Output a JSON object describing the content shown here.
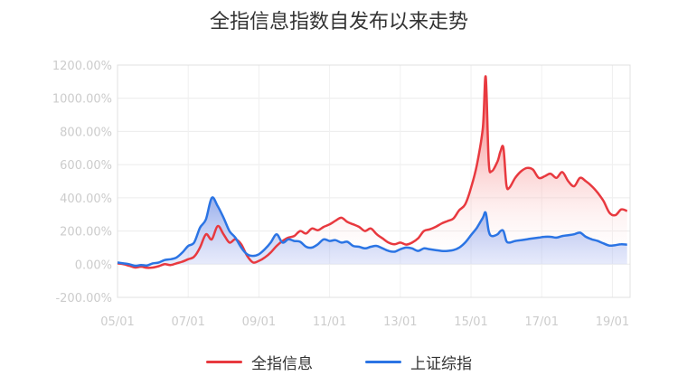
{
  "title": "全指信息指数自发布以来走势",
  "colors": {
    "series1": "#e8393f",
    "series2": "#2b74e4",
    "grid": "#e6e6e6",
    "axis": "#cccccc"
  },
  "chart_data": {
    "type": "area",
    "title": "全指信息指数自发布以来走势",
    "x_ticks": [
      "05/01",
      "07/01",
      "09/01",
      "11/01",
      "13/01",
      "15/01",
      "17/01",
      "19/01"
    ],
    "y_ticks": [
      "1200.00%",
      "1000.00%",
      "800.00%",
      "600.00%",
      "400.00%",
      "200.00%",
      "0.00%",
      "-200.00%"
    ],
    "ylim": [
      -200,
      1200
    ],
    "xlim": [
      "2005-01",
      "2019-06"
    ],
    "grid": {
      "horizontal": true,
      "vertical": true
    },
    "legend_position": "bottom-center",
    "series": [
      {
        "name": "全指信息",
        "points": [
          [
            "2005-01",
            5
          ],
          [
            "2005-03",
            0
          ],
          [
            "2005-05",
            -10
          ],
          [
            "2005-07",
            -20
          ],
          [
            "2005-09",
            -15
          ],
          [
            "2005-11",
            -22
          ],
          [
            "2006-01",
            -20
          ],
          [
            "2006-03",
            -12
          ],
          [
            "2006-05",
            0
          ],
          [
            "2006-07",
            -5
          ],
          [
            "2006-09",
            5
          ],
          [
            "2006-11",
            15
          ],
          [
            "2007-01",
            30
          ],
          [
            "2007-03",
            45
          ],
          [
            "2007-05",
            100
          ],
          [
            "2007-07",
            180
          ],
          [
            "2007-09",
            150
          ],
          [
            "2007-11",
            230
          ],
          [
            "2008-01",
            180
          ],
          [
            "2008-03",
            130
          ],
          [
            "2008-05",
            150
          ],
          [
            "2008-07",
            120
          ],
          [
            "2008-09",
            50
          ],
          [
            "2008-11",
            10
          ],
          [
            "2009-01",
            20
          ],
          [
            "2009-03",
            40
          ],
          [
            "2009-05",
            70
          ],
          [
            "2009-07",
            110
          ],
          [
            "2009-09",
            140
          ],
          [
            "2009-11",
            160
          ],
          [
            "2010-01",
            170
          ],
          [
            "2010-03",
            200
          ],
          [
            "2010-05",
            185
          ],
          [
            "2010-07",
            215
          ],
          [
            "2010-09",
            205
          ],
          [
            "2010-11",
            225
          ],
          [
            "2011-01",
            240
          ],
          [
            "2011-03",
            262
          ],
          [
            "2011-05",
            280
          ],
          [
            "2011-07",
            255
          ],
          [
            "2011-09",
            240
          ],
          [
            "2011-11",
            225
          ],
          [
            "2012-01",
            200
          ],
          [
            "2012-03",
            215
          ],
          [
            "2012-05",
            180
          ],
          [
            "2012-07",
            155
          ],
          [
            "2012-09",
            130
          ],
          [
            "2012-11",
            120
          ],
          [
            "2013-01",
            130
          ],
          [
            "2013-03",
            118
          ],
          [
            "2013-05",
            130
          ],
          [
            "2013-07",
            155
          ],
          [
            "2013-09",
            200
          ],
          [
            "2013-11",
            210
          ],
          [
            "2014-01",
            225
          ],
          [
            "2014-03",
            245
          ],
          [
            "2014-05",
            260
          ],
          [
            "2014-07",
            275
          ],
          [
            "2014-09",
            325
          ],
          [
            "2014-11",
            360
          ],
          [
            "2015-01",
            460
          ],
          [
            "2015-03",
            600
          ],
          [
            "2015-05",
            820
          ],
          [
            "2015-06",
            1130
          ],
          [
            "2015-07",
            620
          ],
          [
            "2015-08",
            560
          ],
          [
            "2015-10",
            620
          ],
          [
            "2015-11",
            680
          ],
          [
            "2015-12",
            700
          ],
          [
            "2016-01",
            480
          ],
          [
            "2016-02",
            460
          ],
          [
            "2016-04",
            520
          ],
          [
            "2016-06",
            560
          ],
          [
            "2016-08",
            580
          ],
          [
            "2016-10",
            570
          ],
          [
            "2016-12",
            520
          ],
          [
            "2017-02",
            530
          ],
          [
            "2017-04",
            545
          ],
          [
            "2017-06",
            520
          ],
          [
            "2017-08",
            555
          ],
          [
            "2017-10",
            500
          ],
          [
            "2017-12",
            470
          ],
          [
            "2018-02",
            520
          ],
          [
            "2018-04",
            500
          ],
          [
            "2018-06",
            470
          ],
          [
            "2018-08",
            430
          ],
          [
            "2018-10",
            380
          ],
          [
            "2018-12",
            310
          ],
          [
            "2019-02",
            295
          ],
          [
            "2019-04",
            330
          ],
          [
            "2019-06",
            320
          ]
        ]
      },
      {
        "name": "上证综指",
        "points": [
          [
            "2005-01",
            10
          ],
          [
            "2005-03",
            5
          ],
          [
            "2005-05",
            0
          ],
          [
            "2005-07",
            -10
          ],
          [
            "2005-09",
            -5
          ],
          [
            "2005-11",
            -8
          ],
          [
            "2006-01",
            5
          ],
          [
            "2006-03",
            10
          ],
          [
            "2006-05",
            25
          ],
          [
            "2006-07",
            30
          ],
          [
            "2006-09",
            40
          ],
          [
            "2006-11",
            70
          ],
          [
            "2007-01",
            110
          ],
          [
            "2007-03",
            130
          ],
          [
            "2007-05",
            220
          ],
          [
            "2007-07",
            270
          ],
          [
            "2007-09",
            400
          ],
          [
            "2007-11",
            350
          ],
          [
            "2008-01",
            280
          ],
          [
            "2008-03",
            200
          ],
          [
            "2008-05",
            160
          ],
          [
            "2008-07",
            100
          ],
          [
            "2008-09",
            60
          ],
          [
            "2008-11",
            50
          ],
          [
            "2009-01",
            60
          ],
          [
            "2009-03",
            90
          ],
          [
            "2009-05",
            130
          ],
          [
            "2009-07",
            180
          ],
          [
            "2009-09",
            130
          ],
          [
            "2009-11",
            150
          ],
          [
            "2010-01",
            140
          ],
          [
            "2010-03",
            135
          ],
          [
            "2010-05",
            105
          ],
          [
            "2010-07",
            100
          ],
          [
            "2010-09",
            120
          ],
          [
            "2010-11",
            150
          ],
          [
            "2011-01",
            140
          ],
          [
            "2011-03",
            145
          ],
          [
            "2011-05",
            130
          ],
          [
            "2011-07",
            135
          ],
          [
            "2011-09",
            110
          ],
          [
            "2011-11",
            105
          ],
          [
            "2012-01",
            95
          ],
          [
            "2012-03",
            105
          ],
          [
            "2012-05",
            110
          ],
          [
            "2012-07",
            95
          ],
          [
            "2012-09",
            80
          ],
          [
            "2012-11",
            75
          ],
          [
            "2013-01",
            90
          ],
          [
            "2013-03",
            100
          ],
          [
            "2013-05",
            95
          ],
          [
            "2013-07",
            80
          ],
          [
            "2013-09",
            95
          ],
          [
            "2013-11",
            90
          ],
          [
            "2014-01",
            85
          ],
          [
            "2014-03",
            80
          ],
          [
            "2014-05",
            80
          ],
          [
            "2014-07",
            85
          ],
          [
            "2014-09",
            100
          ],
          [
            "2014-11",
            130
          ],
          [
            "2015-01",
            175
          ],
          [
            "2015-03",
            220
          ],
          [
            "2015-05",
            280
          ],
          [
            "2015-06",
            310
          ],
          [
            "2015-07",
            200
          ],
          [
            "2015-08",
            170
          ],
          [
            "2015-10",
            180
          ],
          [
            "2015-11",
            200
          ],
          [
            "2015-12",
            200
          ],
          [
            "2016-01",
            140
          ],
          [
            "2016-02",
            130
          ],
          [
            "2016-04",
            140
          ],
          [
            "2016-06",
            145
          ],
          [
            "2016-08",
            150
          ],
          [
            "2016-10",
            155
          ],
          [
            "2016-12",
            160
          ],
          [
            "2017-02",
            165
          ],
          [
            "2017-04",
            165
          ],
          [
            "2017-06",
            160
          ],
          [
            "2017-08",
            170
          ],
          [
            "2017-10",
            175
          ],
          [
            "2017-12",
            180
          ],
          [
            "2018-02",
            190
          ],
          [
            "2018-04",
            165
          ],
          [
            "2018-06",
            150
          ],
          [
            "2018-08",
            140
          ],
          [
            "2018-10",
            125
          ],
          [
            "2018-12",
            112
          ],
          [
            "2019-02",
            115
          ],
          [
            "2019-04",
            120
          ],
          [
            "2019-06",
            118
          ]
        ]
      }
    ]
  }
}
